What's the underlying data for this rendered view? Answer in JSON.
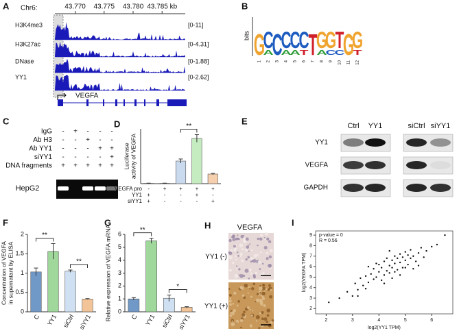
{
  "genome_browser": {
    "panel": "A",
    "chrom": "Chr6:",
    "xlim": [
      43.7665,
      43.789
    ],
    "xticks": [
      {
        "value": 43.77,
        "label": "43.770"
      },
      {
        "value": 43.775,
        "label": "43.775"
      },
      {
        "value": 43.78,
        "label": "43.780"
      },
      {
        "value": 43.785,
        "label": "43.785 kb"
      }
    ],
    "tracks": [
      {
        "name": "H3K4me3",
        "range": "[0-11]"
      },
      {
        "name": "H3K27ac",
        "range": "[0-4.31]"
      },
      {
        "name": "DNase",
        "range": "[0-1.88]"
      },
      {
        "name": "YY1",
        "range": "[0-2.62]"
      }
    ],
    "gene": "VEGFA"
  },
  "motif": {
    "panel": "B",
    "ylabel": "bits",
    "columns": [
      [
        "G"
      ],
      [
        "C",
        "A"
      ],
      [
        "C"
      ],
      [
        "C",
        "A"
      ],
      [
        "C",
        "A"
      ],
      [
        "C",
        "T"
      ],
      [
        "T"
      ],
      [
        "G",
        "A"
      ],
      [
        "G",
        "C"
      ],
      [
        "T",
        "C"
      ],
      [
        "G"
      ],
      [
        "G",
        "T"
      ]
    ],
    "xticks": [
      1,
      2,
      3,
      4,
      5,
      6,
      7,
      8,
      9,
      10,
      11,
      12
    ]
  },
  "chip": {
    "panel": "C",
    "rows": [
      {
        "name": "IgG",
        "signs": [
          "-",
          "+",
          "-",
          "-",
          "-"
        ]
      },
      {
        "name": "Ab H3",
        "signs": [
          "-",
          "-",
          "+",
          "-",
          "-"
        ]
      },
      {
        "name": "Ab YY1",
        "signs": [
          "-",
          "-",
          "-",
          "+",
          "+"
        ]
      },
      {
        "name": "siYY1",
        "signs": [
          "-",
          "-",
          "-",
          "-",
          "+"
        ]
      },
      {
        "name": "DNA fragments",
        "signs": [
          "+",
          "+",
          "+",
          "+",
          "+"
        ]
      }
    ],
    "cell": "HepG2"
  },
  "western": {
    "panel": "E",
    "lanes": [
      "Ctrl",
      "YY1",
      "siCtrl",
      "siYY1"
    ],
    "proteins": [
      "YY1",
      "VEGFA",
      "GAPDH"
    ]
  },
  "ihc": {
    "panel": "H",
    "title": "VEGFA",
    "rows": [
      "YY1 (-)",
      "YY1 (+)"
    ]
  },
  "chart_data": [
    {
      "type": "bar",
      "panel": "D",
      "ylabel": [
        "Luciferase",
        "activity of VEGFA"
      ],
      "values": [
        0.1,
        0.1,
        6.6,
        13.2,
        2.8
      ],
      "errors": [
        0.05,
        0.05,
        0.6,
        1.1,
        0.2
      ],
      "colors": [
        "#c9d9ee",
        "#c9d9ee",
        "#c9d9ee",
        "#c5ecc0",
        "#f6cfae"
      ],
      "ylim": [
        0,
        16
      ],
      "significance": [
        "**"
      ],
      "conditions": [
        {
          "name": "VEGFA pro",
          "signs": [
            "-",
            "+",
            "+",
            "+",
            "+"
          ]
        },
        {
          "name": "YY1",
          "signs": [
            "+",
            "-",
            "-",
            "+",
            "-"
          ]
        },
        {
          "name": "siYY1",
          "signs": [
            "+",
            "-",
            "-",
            "-",
            "+"
          ]
        }
      ]
    },
    {
      "type": "bar",
      "panel": "F",
      "ylabel": [
        "Concentration of VEGFA",
        "in supernatant by ELISA"
      ],
      "categories": [
        "C",
        "YY1",
        "siCtrl",
        "siYY1"
      ],
      "values": [
        1.03,
        1.56,
        1.05,
        0.33
      ],
      "errors": [
        0.1,
        0.2,
        0.03,
        0.01
      ],
      "colors": [
        "#7199c8",
        "#9fd89a",
        "#cfe0f3",
        "#f2c498"
      ],
      "ylim": [
        0,
        2
      ],
      "yticks": [
        0,
        0.5,
        1,
        1.5,
        2
      ],
      "significance": [
        "**",
        "**"
      ]
    },
    {
      "type": "bar",
      "panel": "G",
      "ylabel": [
        "Relative expression of VEGFA mRNA"
      ],
      "categories": [
        "C",
        "YY1",
        "siCtrl",
        "siYY1"
      ],
      "values": [
        1.0,
        5.5,
        1.05,
        0.35
      ],
      "errors": [
        0.1,
        0.2,
        0.25,
        0.05
      ],
      "colors": [
        "#7199c8",
        "#9fd89a",
        "#cfe0f3",
        "#f2c498"
      ],
      "ylim": [
        0,
        6
      ],
      "yticks": [
        0,
        1,
        2,
        3,
        4,
        5,
        6
      ],
      "significance": [
        "**",
        "*"
      ]
    },
    {
      "type": "scatter",
      "panel": "I",
      "xlabel": "log2(YY1 TPM)",
      "ylabel": "log2(VEGFA TPM)",
      "annotations": [
        "p-value = 0",
        "R = 0.56"
      ],
      "x": [
        2.1,
        2.5,
        2.8,
        3.0,
        3.1,
        3.2,
        3.3,
        3.4,
        3.5,
        3.5,
        3.6,
        3.7,
        3.8,
        3.8,
        3.9,
        4.0,
        4.0,
        4.1,
        4.1,
        4.2,
        4.2,
        4.3,
        4.3,
        4.4,
        4.4,
        4.5,
        4.5,
        4.5,
        4.6,
        4.6,
        4.7,
        4.7,
        4.8,
        4.8,
        4.9,
        4.9,
        5.0,
        5.0,
        5.1,
        5.1,
        5.2,
        5.2,
        5.3,
        5.4,
        5.5,
        5.6,
        5.7,
        5.8,
        6.0,
        6.2,
        3.6,
        4.2,
        4.8,
        5.3,
        3.9,
        4.6,
        5.0,
        4.4,
        3.2,
        5.5,
        6.5
      ],
      "y": [
        2.6,
        3.0,
        3.6,
        3.2,
        4.4,
        3.8,
        4.9,
        4.2,
        5.1,
        3.9,
        4.5,
        5.3,
        4.8,
        5.8,
        5.0,
        5.5,
        6.2,
        4.7,
        5.9,
        5.2,
        6.5,
        5.6,
        6.8,
        5.4,
        6.1,
        5.9,
        6.6,
        4.9,
        6.3,
        7.0,
        5.7,
        6.8,
        6.4,
        7.2,
        5.9,
        6.9,
        6.6,
        7.4,
        6.2,
        7.1,
        6.8,
        7.6,
        7.0,
        6.5,
        7.3,
        7.8,
        6.9,
        7.5,
        7.9,
        8.1,
        6.0,
        4.4,
        5.2,
        5.8,
        6.3,
        5.5,
        5.9,
        7.5,
        3.2,
        6.1,
        9.0
      ],
      "xlim": [
        1.6,
        6.8
      ],
      "xticks": [
        2,
        3,
        4,
        5,
        6
      ],
      "ylim": [
        1.5,
        9.4
      ],
      "yticks": [
        2,
        3,
        4,
        5,
        6,
        7,
        8,
        9
      ],
      "color": "#111111"
    }
  ]
}
